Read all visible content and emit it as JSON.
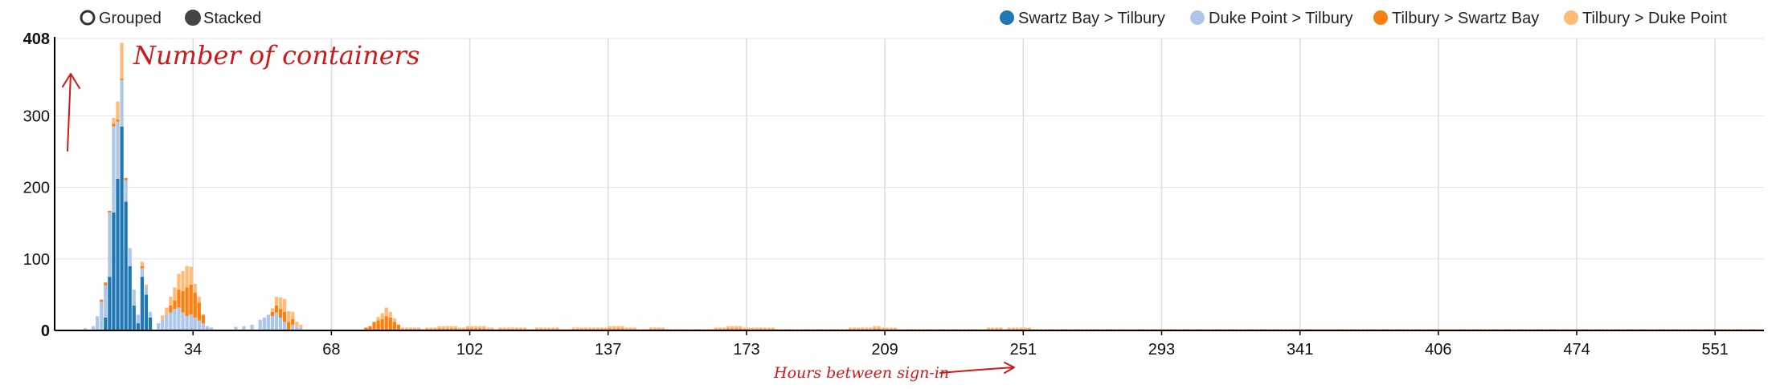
{
  "controls": {
    "grouped_label": "Grouped",
    "stacked_label": "Stacked",
    "selected": "stacked"
  },
  "annotations": {
    "y_note": "Number of containers",
    "x_note": "Hours between sign-in"
  },
  "colors": {
    "swartz_to_tilbury": "#1f77b4",
    "duke_to_tilbury": "#aec7e8",
    "tilbury_to_swartz": "#ff7f0e",
    "tilbury_to_duke": "#ffbb78",
    "annotation": "#d01818"
  },
  "chart_data": {
    "type": "bar",
    "stacked": true,
    "title": "",
    "xlabel": "Hours between sign-in",
    "ylabel": "Number of containers",
    "ylim": [
      0,
      408
    ],
    "y_ticks": [
      "0",
      "100",
      "200",
      "300",
      "408"
    ],
    "x_tick_labels": [
      "34",
      "68",
      "102",
      "137",
      "173",
      "209",
      "251",
      "293",
      "341",
      "406",
      "474",
      "551"
    ],
    "x_tick_bins": [
      34,
      68,
      102,
      136,
      170,
      204,
      238,
      272,
      306,
      340,
      374,
      408
    ],
    "bin_count": 420,
    "legend_position": "top-right",
    "grid": true,
    "series": [
      {
        "name": "Swartz Bay > Tilbury",
        "color": "#1f77b4",
        "peaks": [
          [
            12,
            18
          ],
          [
            13,
            75
          ],
          [
            14,
            165
          ],
          [
            15,
            212
          ],
          [
            16,
            285
          ],
          [
            17,
            180
          ],
          [
            18,
            90
          ],
          [
            19,
            35
          ],
          [
            20,
            10
          ],
          [
            21,
            75
          ],
          [
            22,
            50
          ],
          [
            23,
            18
          ]
        ]
      },
      {
        "name": "Duke Point > Tilbury",
        "color": "#aec7e8",
        "peaks": [
          [
            7,
            3
          ],
          [
            9,
            6
          ],
          [
            10,
            20
          ],
          [
            11,
            40
          ],
          [
            12,
            45
          ],
          [
            13,
            90
          ],
          [
            14,
            120
          ],
          [
            15,
            80
          ],
          [
            16,
            65
          ],
          [
            17,
            30
          ],
          [
            18,
            25
          ],
          [
            19,
            22
          ],
          [
            20,
            12
          ],
          [
            21,
            12
          ],
          [
            22,
            10
          ],
          [
            23,
            8
          ],
          [
            25,
            10
          ],
          [
            26,
            15
          ],
          [
            27,
            22
          ],
          [
            28,
            25
          ],
          [
            29,
            30
          ],
          [
            30,
            32
          ],
          [
            31,
            25
          ],
          [
            32,
            20
          ],
          [
            33,
            22
          ],
          [
            34,
            18
          ],
          [
            35,
            14
          ],
          [
            36,
            10
          ],
          [
            37,
            6
          ],
          [
            38,
            4
          ],
          [
            44,
            5
          ],
          [
            46,
            6
          ],
          [
            48,
            8
          ],
          [
            50,
            15
          ],
          [
            51,
            18
          ],
          [
            52,
            22
          ],
          [
            53,
            20
          ],
          [
            54,
            25
          ],
          [
            55,
            18
          ],
          [
            56,
            12
          ],
          [
            58,
            8
          ],
          [
            59,
            6
          ],
          [
            60,
            4
          ]
        ]
      },
      {
        "name": "Tilbury > Swartz Bay",
        "color": "#ff7f0e",
        "center": 252,
        "peaks": [
          [
            11,
            3
          ],
          [
            12,
            4
          ],
          [
            13,
            2
          ],
          [
            14,
            4
          ],
          [
            15,
            3
          ],
          [
            16,
            2
          ],
          [
            17,
            3
          ],
          [
            21,
            3
          ],
          [
            24,
            1
          ],
          [
            28,
            10
          ],
          [
            29,
            12
          ],
          [
            30,
            25
          ],
          [
            31,
            30
          ],
          [
            32,
            40
          ],
          [
            33,
            42
          ],
          [
            34,
            35
          ],
          [
            35,
            25
          ],
          [
            36,
            12
          ],
          [
            53,
            6
          ],
          [
            54,
            10
          ],
          [
            55,
            12
          ],
          [
            56,
            14
          ],
          [
            57,
            12
          ],
          [
            58,
            8
          ],
          [
            76,
            4
          ],
          [
            77,
            6
          ],
          [
            78,
            12
          ],
          [
            79,
            14
          ],
          [
            80,
            16
          ],
          [
            81,
            20
          ],
          [
            82,
            18
          ],
          [
            83,
            12
          ],
          [
            84,
            8
          ]
        ]
      },
      {
        "name": "Tilbury > Duke Point",
        "color": "#ffbb78",
        "peaks": [
          [
            16,
            50
          ],
          [
            15,
            25
          ],
          [
            14,
            8
          ],
          [
            22,
            4
          ],
          [
            21,
            6
          ],
          [
            26,
            6
          ],
          [
            27,
            10
          ],
          [
            28,
            12
          ],
          [
            29,
            18
          ],
          [
            30,
            22
          ],
          [
            31,
            28
          ],
          [
            32,
            30
          ],
          [
            33,
            25
          ],
          [
            34,
            12
          ],
          [
            35,
            8
          ],
          [
            53,
            5
          ],
          [
            54,
            12
          ],
          [
            55,
            16
          ],
          [
            56,
            18
          ],
          [
            57,
            15
          ],
          [
            58,
            10
          ],
          [
            59,
            6
          ],
          [
            60,
            4
          ],
          [
            79,
            5
          ],
          [
            80,
            8
          ],
          [
            81,
            12
          ],
          [
            82,
            8
          ],
          [
            83,
            5
          ]
        ]
      }
    ]
  }
}
